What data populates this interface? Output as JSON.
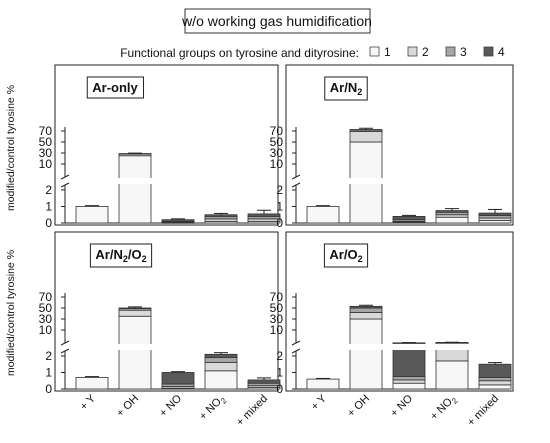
{
  "figure": {
    "title": "w/o working gas humidification",
    "legend_title": "Functional groups on tyrosine and dityrosine:",
    "legend": [
      {
        "label": "1",
        "color": "#f7f7f7"
      },
      {
        "label": "2",
        "color": "#d9d9d9"
      },
      {
        "label": "3",
        "color": "#a6a6a6"
      },
      {
        "label": "4",
        "color": "#595959"
      }
    ],
    "ylabel": "modified/control tyrosine %"
  },
  "chart_data": [
    {
      "type": "bar",
      "panel": "Ar-only",
      "title_parts": {
        "main": "Ar-only",
        "sub": ""
      },
      "categories": [
        "+ Y",
        "+ OH",
        "+ NO",
        "+ NO2",
        "+ mixed"
      ],
      "category_label_parts": [
        [
          "+ Y",
          ""
        ],
        [
          "+ OH",
          ""
        ],
        [
          "+ NO",
          ""
        ],
        [
          "+ NO",
          "2"
        ],
        [
          "+ mixed",
          ""
        ]
      ],
      "ylabel": "modified/control tyrosine %",
      "yticks": [
        0,
        1,
        2,
        10,
        30,
        50,
        70
      ],
      "ylim_lower": [
        0,
        2.3
      ],
      "ylim_upper": [
        2.3,
        78
      ],
      "stacks": [
        {
          "total": 1.0,
          "error": 0.05,
          "segments": [
            1,
            0,
            0,
            0
          ]
        },
        {
          "total": 29.0,
          "error": 0.8,
          "segments": [
            25,
            3,
            1,
            0
          ]
        },
        {
          "total": 0.2,
          "error": 0.05,
          "segments": [
            0.02,
            0.03,
            0.05,
            0.1
          ]
        },
        {
          "total": 0.5,
          "error": 0.08,
          "segments": [
            0.1,
            0.15,
            0.15,
            0.1
          ]
        },
        {
          "total": 0.55,
          "error": 0.22,
          "segments": [
            0.1,
            0.15,
            0.15,
            0.15
          ]
        }
      ]
    },
    {
      "type": "bar",
      "panel": "Ar/N2",
      "title_parts": {
        "main": "Ar/N",
        "sub": "2"
      },
      "categories": [
        "+ Y",
        "+ OH",
        "+ NO",
        "+ NO2",
        "+ mixed"
      ],
      "category_label_parts": [
        [
          "+ Y",
          ""
        ],
        [
          "+ OH",
          ""
        ],
        [
          "+ NO",
          ""
        ],
        [
          "+ NO",
          "2"
        ],
        [
          "+ mixed",
          ""
        ]
      ],
      "ylabel": "",
      "yticks": [
        0,
        1,
        2,
        10,
        30,
        50,
        70
      ],
      "ylim_lower": [
        0,
        2.3
      ],
      "ylim_upper": [
        2.3,
        78
      ],
      "stacks": [
        {
          "total": 1.0,
          "error": 0.05,
          "segments": [
            1,
            0,
            0,
            0
          ]
        },
        {
          "total": 73.0,
          "error": 2.5,
          "segments": [
            50,
            19,
            3,
            1
          ]
        },
        {
          "total": 0.4,
          "error": 0.06,
          "segments": [
            0.05,
            0.05,
            0.1,
            0.2
          ]
        },
        {
          "total": 0.75,
          "error": 0.12,
          "segments": [
            0.35,
            0.15,
            0.15,
            0.1
          ]
        },
        {
          "total": 0.6,
          "error": 0.22,
          "segments": [
            0.15,
            0.15,
            0.15,
            0.15
          ]
        }
      ]
    },
    {
      "type": "bar",
      "panel": "Ar/N2/O2",
      "title_parts": {
        "main": "Ar/N",
        "sub": "2",
        "main2": "/O",
        "sub2": "2"
      },
      "categories": [
        "+ Y",
        "+ OH",
        "+ NO",
        "+ NO2",
        "+ mixed"
      ],
      "category_label_parts": [
        [
          "+ Y",
          ""
        ],
        [
          "+ OH",
          ""
        ],
        [
          "+ NO",
          ""
        ],
        [
          "+ NO",
          "2"
        ],
        [
          "+ mixed",
          ""
        ]
      ],
      "ylabel": "modified/control tyrosine %",
      "yticks": [
        0,
        1,
        2,
        10,
        30,
        50,
        70
      ],
      "ylim_lower": [
        0,
        2.3
      ],
      "ylim_upper": [
        2.3,
        78
      ],
      "stacks": [
        {
          "total": 0.7,
          "error": 0.05,
          "segments": [
            0.7,
            0,
            0,
            0
          ]
        },
        {
          "total": 50.0,
          "error": 2.0,
          "segments": [
            35,
            11,
            3,
            1
          ]
        },
        {
          "total": 1.0,
          "error": 0.05,
          "segments": [
            0.05,
            0.1,
            0.15,
            0.7
          ]
        },
        {
          "total": 2.1,
          "error": 0.1,
          "segments": [
            1.1,
            0.5,
            0.3,
            0.2
          ]
        },
        {
          "total": 0.55,
          "error": 0.12,
          "segments": [
            0.1,
            0.1,
            0.15,
            0.2
          ]
        }
      ]
    },
    {
      "type": "bar",
      "panel": "Ar/O2",
      "title_parts": {
        "main": "Ar/O",
        "sub": "2"
      },
      "categories": [
        "+ Y",
        "+ OH",
        "+ NO",
        "+ NO2",
        "+ mixed"
      ],
      "category_label_parts": [
        [
          "+ Y",
          ""
        ],
        [
          "+ OH",
          ""
        ],
        [
          "+ NO",
          ""
        ],
        [
          "+ NO",
          "2"
        ],
        [
          "+ mixed",
          ""
        ]
      ],
      "ylabel": "",
      "yticks": [
        0,
        1,
        2,
        10,
        30,
        50,
        70
      ],
      "ylim_lower": [
        0,
        2.3
      ],
      "ylim_upper": [
        2.3,
        78
      ],
      "stacks": [
        {
          "total": 0.6,
          "error": 0.04,
          "segments": [
            0.6,
            0,
            0,
            0
          ]
        },
        {
          "total": 53.0,
          "error": 2.0,
          "segments": [
            30,
            12,
            8,
            3
          ]
        },
        {
          "total": 2.4,
          "error": 0.15,
          "segments": [
            0.35,
            0.2,
            0.2,
            1.65
          ]
        },
        {
          "total": 2.6,
          "error": 0.15,
          "segments": [
            1.7,
            0.7,
            0.15,
            0.05
          ]
        },
        {
          "total": 1.5,
          "error": 0.1,
          "segments": [
            0.25,
            0.25,
            0.2,
            0.8
          ]
        }
      ]
    }
  ]
}
